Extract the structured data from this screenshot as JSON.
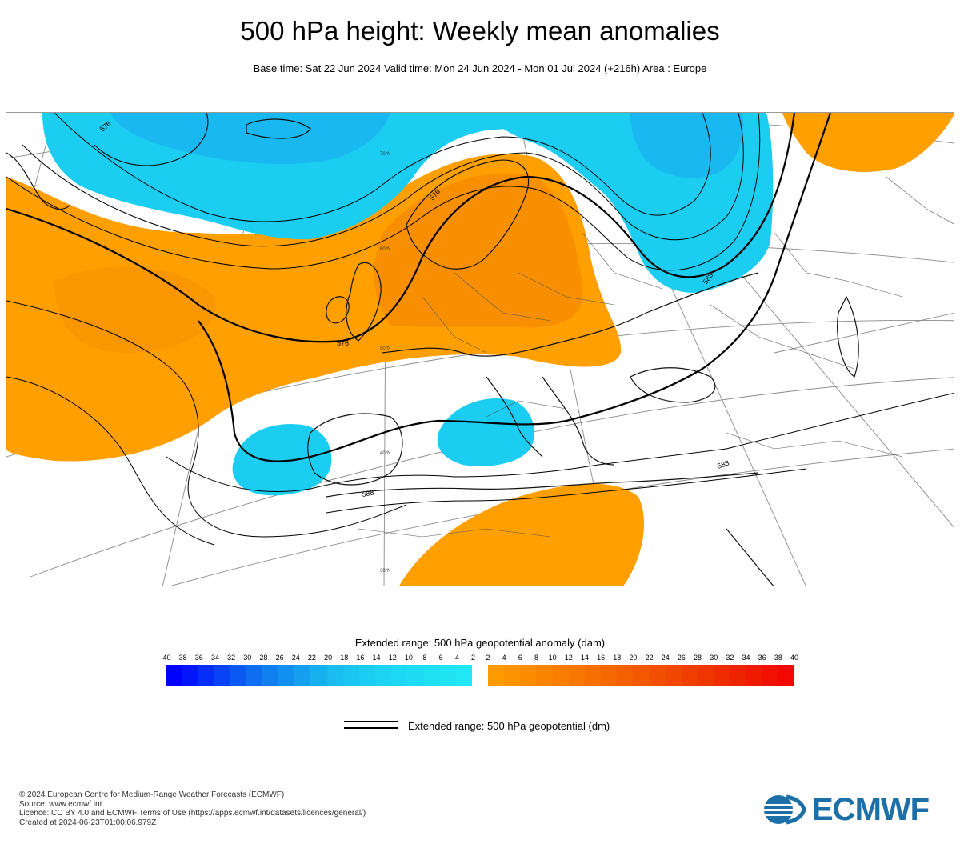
{
  "header": {
    "title": "500 hPa height: Weekly mean anomalies",
    "subtitle": "Base time: Sat 22 Jun 2024 Valid time: Mon 24 Jun 2024 - Mon 01 Jul 2024 (+216h) Area : Europe"
  },
  "map": {
    "contour_labels": [
      "576",
      "576",
      "576",
      "588",
      "588",
      "588"
    ],
    "latitude_labels": [
      "70°N",
      "60°N",
      "50°N",
      "40°N",
      "30°N"
    ],
    "colors": {
      "negative_anomaly": "#1ccdf2",
      "negative_core": "#19b8f0",
      "positive_anomaly": "#ff9f00",
      "positive_core": "#f58a00",
      "contour": "#000000",
      "coastline": "#111111",
      "graticule": "#8a8a8a"
    }
  },
  "legend": {
    "title": "Extended range: 500 hPa geopotential anomaly (dam)",
    "ticks": [
      "-40",
      "-38",
      "-36",
      "-34",
      "-32",
      "-30",
      "-28",
      "-26",
      "-24",
      "-22",
      "-20",
      "-18",
      "-16",
      "-14",
      "-12",
      "-10",
      "-8",
      "-6",
      "-4",
      "-2",
      "2",
      "4",
      "6",
      "8",
      "10",
      "12",
      "14",
      "16",
      "18",
      "20",
      "22",
      "24",
      "26",
      "28",
      "30",
      "32",
      "34",
      "36",
      "38",
      "40"
    ],
    "tick_values": [
      -40,
      -38,
      -36,
      -34,
      -32,
      -30,
      -28,
      -26,
      -24,
      -22,
      -20,
      -18,
      -16,
      -14,
      -12,
      -10,
      -8,
      -6,
      -4,
      -2,
      2,
      4,
      6,
      8,
      10,
      12,
      14,
      16,
      18,
      20,
      22,
      24,
      26,
      28,
      30,
      32,
      34,
      36,
      38,
      40
    ],
    "tick_range": [
      -40,
      40
    ],
    "negative_colors": [
      "#0000ff",
      "#0316fb",
      "#052df8",
      "#0843f5",
      "#0a59f2",
      "#0d6ef2",
      "#1080f1",
      "#1290f0",
      "#15a0ef",
      "#17b0ef",
      "#19bdf0",
      "#1ac6f1",
      "#1bcdf2",
      "#1cd3f2",
      "#1dd8f3",
      "#1edcf3",
      "#1fe0f3",
      "#20e3f4",
      "#21e6f4"
    ],
    "positive_colors": [
      "#ff9a00",
      "#fe9300",
      "#fd8c00",
      "#fb8500",
      "#f97e00",
      "#f87700",
      "#f66f00",
      "#f56800",
      "#f46000",
      "#f35800",
      "#f25000",
      "#f14700",
      "#f03e00",
      "#ef3500",
      "#ef2c00",
      "#ee2300",
      "#ef1a00",
      "#f01100",
      "#f20800"
    ],
    "contour_label": "Extended range: 500 hPa geopotential (dm)"
  },
  "footer": {
    "lines": [
      "© 2024 European Centre for Medium-Range Weather Forecasts (ECMWF)",
      "Source: www.ecmwf.int",
      "Licence: CC BY 4.0 and ECMWF Terms of Use (https://apps.ecmwf.int/datasets/licences/general/)",
      "Created at 2024-06-23T01:00:06.979Z"
    ],
    "logo_text": "ECMWF",
    "logo_color": "#1d6fa8"
  }
}
